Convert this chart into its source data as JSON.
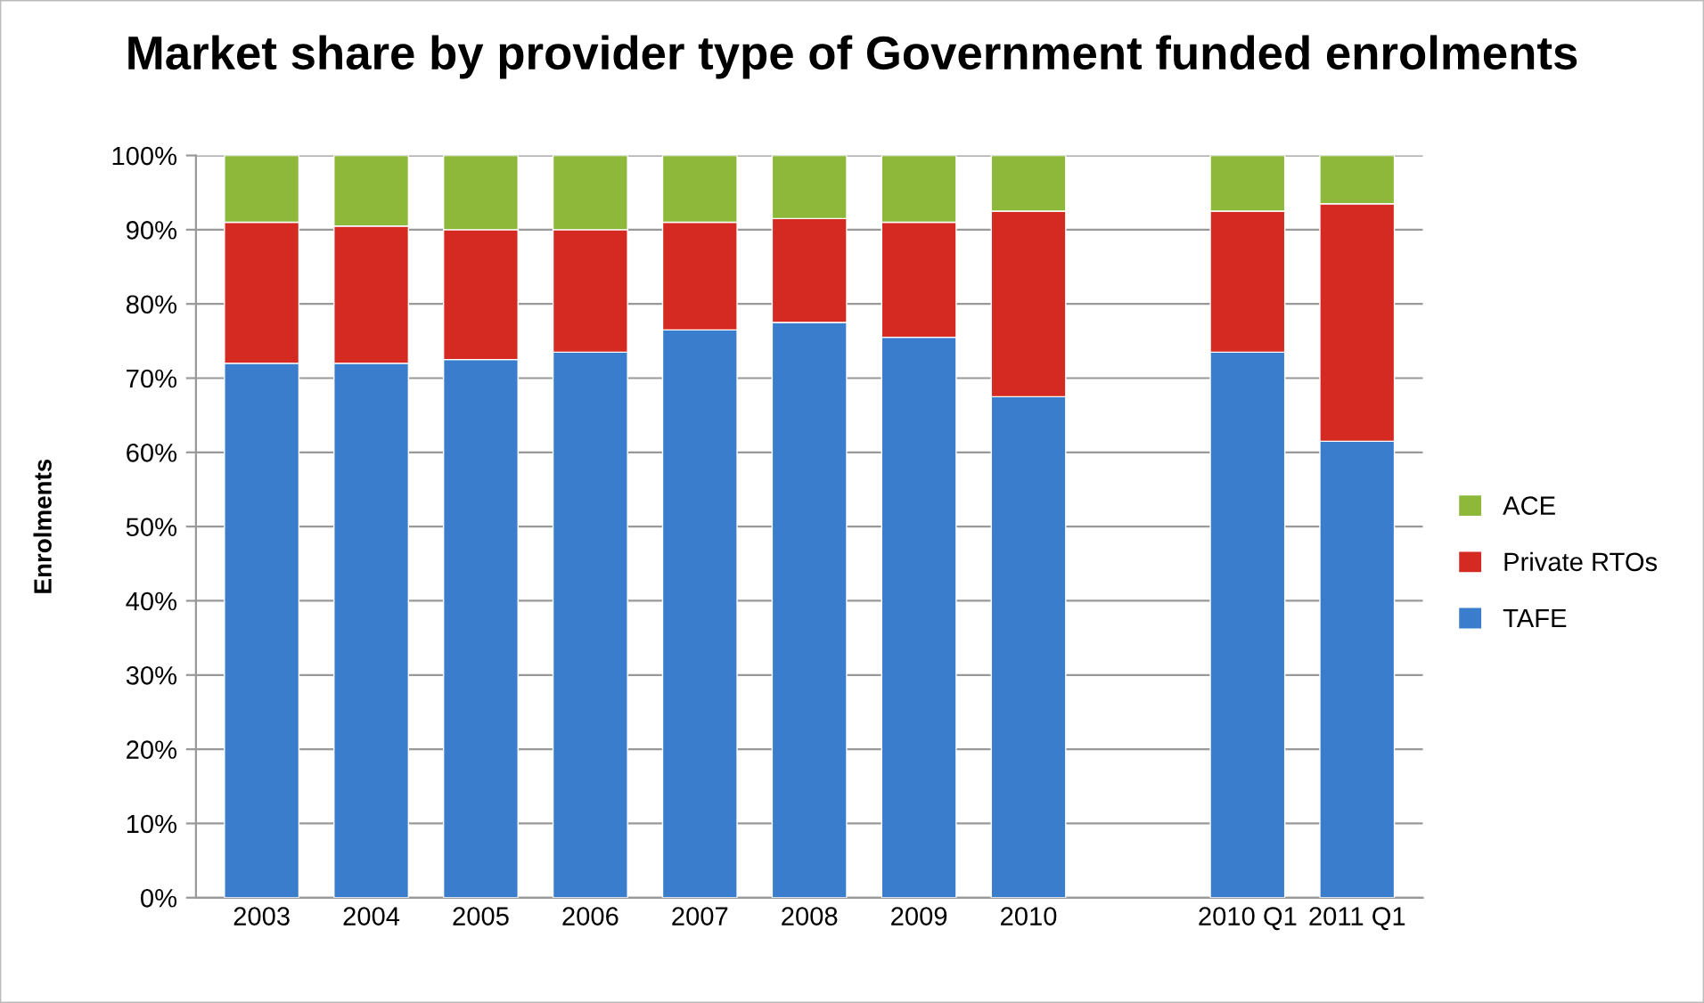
{
  "chart_data": {
    "type": "bar",
    "stacked": true,
    "title": "Market share by provider type of Government funded enrolments",
    "ylabel": "Enrolments",
    "categories": [
      "2003",
      "2004",
      "2005",
      "2006",
      "2007",
      "2008",
      "2009",
      "2010",
      null,
      "2010 Q1",
      "2011 Q1"
    ],
    "series": [
      {
        "name": "TAFE",
        "color": "#3a7dcc",
        "values": [
          72,
          72,
          72.5,
          73.5,
          76.5,
          77.5,
          75.5,
          67.5,
          null,
          73.5,
          61.5
        ]
      },
      {
        "name": "Private RTOs",
        "color": "#d42a22",
        "values": [
          19,
          18.5,
          17.5,
          16.5,
          14.5,
          14,
          15.5,
          25,
          null,
          19,
          32
        ]
      },
      {
        "name": "ACE",
        "color": "#8db83a",
        "values": [
          9,
          9.5,
          10,
          10,
          9,
          8.5,
          9,
          7.5,
          null,
          7.5,
          6.5
        ]
      }
    ],
    "ylim": [
      0,
      100
    ],
    "yticks": [
      {
        "value": 0,
        "label": "0%"
      },
      {
        "value": 10,
        "label": "10%"
      },
      {
        "value": 20,
        "label": "20%"
      },
      {
        "value": 30,
        "label": "30%"
      },
      {
        "value": 40,
        "label": "40%"
      },
      {
        "value": 50,
        "label": "50%"
      },
      {
        "value": 60,
        "label": "60%"
      },
      {
        "value": 70,
        "label": "70%"
      },
      {
        "value": 80,
        "label": "80%"
      },
      {
        "value": 90,
        "label": "90%"
      },
      {
        "value": 100,
        "label": "100%"
      }
    ],
    "grid": "y",
    "legend": "right"
  }
}
